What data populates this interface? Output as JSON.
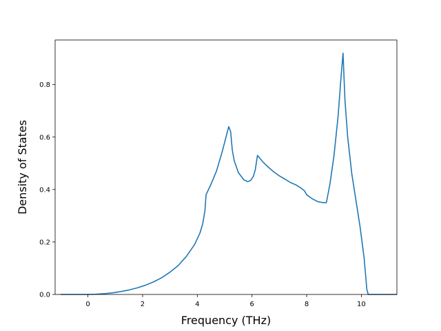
{
  "chart_data": {
    "type": "line",
    "title": "",
    "xlabel": "Frequency (THz)",
    "ylabel": "Density of States",
    "xlim": [
      -1.2,
      11.3
    ],
    "ylim": [
      0.0,
      0.97
    ],
    "grid": false,
    "legend": "none",
    "xticks": [
      0,
      2,
      4,
      6,
      8,
      10
    ],
    "yticks": [
      0.0,
      0.2,
      0.4,
      0.6,
      0.8
    ],
    "xtick_labels": [
      "0",
      "2",
      "4",
      "6",
      "8",
      "10"
    ],
    "ytick_labels": [
      "0.0",
      "0.2",
      "0.4",
      "0.6",
      "0.8"
    ],
    "series": [
      {
        "color": "#1f77b4",
        "points": [
          [
            -1.0,
            0.0
          ],
          [
            0.0,
            0.0
          ],
          [
            0.3,
            0.001
          ],
          [
            0.6,
            0.003
          ],
          [
            0.9,
            0.006
          ],
          [
            1.2,
            0.011
          ],
          [
            1.5,
            0.017
          ],
          [
            1.8,
            0.025
          ],
          [
            2.1,
            0.035
          ],
          [
            2.4,
            0.048
          ],
          [
            2.7,
            0.064
          ],
          [
            3.0,
            0.085
          ],
          [
            3.3,
            0.11
          ],
          [
            3.6,
            0.145
          ],
          [
            3.9,
            0.19
          ],
          [
            4.1,
            0.235
          ],
          [
            4.2,
            0.27
          ],
          [
            4.28,
            0.32
          ],
          [
            4.32,
            0.38
          ],
          [
            4.5,
            0.42
          ],
          [
            4.7,
            0.47
          ],
          [
            4.9,
            0.54
          ],
          [
            5.05,
            0.6
          ],
          [
            5.15,
            0.64
          ],
          [
            5.22,
            0.62
          ],
          [
            5.28,
            0.55
          ],
          [
            5.35,
            0.51
          ],
          [
            5.5,
            0.465
          ],
          [
            5.7,
            0.437
          ],
          [
            5.85,
            0.43
          ],
          [
            5.95,
            0.435
          ],
          [
            6.05,
            0.45
          ],
          [
            6.12,
            0.475
          ],
          [
            6.2,
            0.53
          ],
          [
            6.4,
            0.505
          ],
          [
            6.6,
            0.485
          ],
          [
            6.8,
            0.467
          ],
          [
            7.0,
            0.452
          ],
          [
            7.2,
            0.44
          ],
          [
            7.4,
            0.427
          ],
          [
            7.6,
            0.418
          ],
          [
            7.8,
            0.405
          ],
          [
            7.92,
            0.395
          ],
          [
            8.0,
            0.38
          ],
          [
            8.2,
            0.365
          ],
          [
            8.4,
            0.354
          ],
          [
            8.6,
            0.35
          ],
          [
            8.72,
            0.35
          ],
          [
            8.85,
            0.42
          ],
          [
            9.0,
            0.53
          ],
          [
            9.15,
            0.68
          ],
          [
            9.25,
            0.82
          ],
          [
            9.33,
            0.92
          ],
          [
            9.4,
            0.74
          ],
          [
            9.5,
            0.6
          ],
          [
            9.65,
            0.46
          ],
          [
            9.8,
            0.36
          ],
          [
            9.95,
            0.26
          ],
          [
            10.1,
            0.14
          ],
          [
            10.2,
            0.02
          ],
          [
            10.25,
            0.0
          ],
          [
            11.3,
            0.0
          ]
        ]
      }
    ]
  }
}
